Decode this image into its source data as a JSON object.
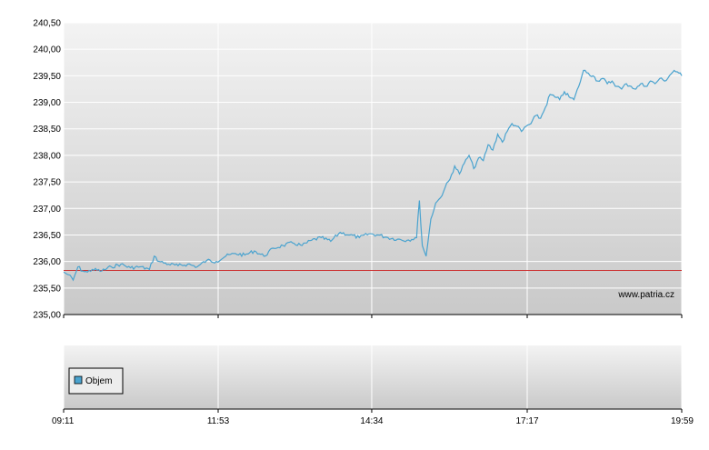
{
  "colors": {
    "line": "#4aa3cf",
    "baseline": "#cc3333",
    "grid": "#ffffff",
    "panel_top": "#f3f3f3",
    "panel_bottom": "#c9c9c9",
    "axis": "#000000"
  },
  "watermark": "www.patria.cz",
  "chart_data": [
    {
      "type": "line",
      "title": "",
      "xlabel": "",
      "ylabel": "",
      "grid": true,
      "xlim": [
        "09:11",
        "19:59"
      ],
      "ylim": [
        235.0,
        240.5
      ],
      "y_ticks": [
        "235,00",
        "235,50",
        "236,00",
        "236,50",
        "237,00",
        "237,50",
        "238,00",
        "238,50",
        "239,00",
        "239,50",
        "240,00",
        "240,50"
      ],
      "x_ticks": [
        "09:11",
        "11:53",
        "14:34",
        "17:17",
        "19:59"
      ],
      "reference_line": 235.83,
      "series": [
        {
          "x": [
            "09:11",
            "09:16",
            "09:21",
            "09:26",
            "09:31",
            "09:36",
            "09:41",
            "09:51",
            "10:01",
            "10:11",
            "10:21",
            "10:31",
            "10:41",
            "10:46",
            "10:51",
            "11:01",
            "11:11",
            "11:21",
            "11:31",
            "11:41",
            "11:51",
            "12:01",
            "12:11",
            "12:21",
            "12:31",
            "12:41",
            "12:51",
            "13:01",
            "13:11",
            "13:21",
            "13:31",
            "13:41",
            "13:51",
            "14:01",
            "14:11",
            "14:21",
            "14:31",
            "14:41",
            "14:51",
            "15:01",
            "15:11",
            "15:21",
            "15:24",
            "15:27",
            "15:31",
            "15:36",
            "15:41",
            "15:46",
            "15:51",
            "15:56",
            "16:01",
            "16:06",
            "16:11",
            "16:16",
            "16:21",
            "16:26",
            "16:31",
            "16:36",
            "16:41",
            "16:46",
            "16:51",
            "16:56",
            "17:01",
            "17:06",
            "17:11",
            "17:16",
            "17:21",
            "17:26",
            "17:31",
            "17:36",
            "17:41",
            "17:46",
            "17:51",
            "17:56",
            "18:01",
            "18:06",
            "18:11",
            "18:16",
            "18:21",
            "18:26",
            "18:31",
            "18:36",
            "18:41",
            "18:46",
            "18:51",
            "18:56",
            "19:01",
            "19:06",
            "19:11",
            "19:16",
            "19:21",
            "19:26",
            "19:31",
            "19:36",
            "19:41",
            "19:46",
            "19:51",
            "19:56",
            "19:59"
          ],
          "y": [
            235.8,
            235.75,
            235.65,
            235.9,
            235.82,
            235.8,
            235.85,
            235.82,
            235.9,
            235.95,
            235.88,
            235.9,
            235.85,
            236.1,
            236.0,
            235.95,
            235.92,
            235.95,
            235.9,
            236.02,
            236.0,
            236.1,
            236.15,
            236.12,
            236.2,
            236.1,
            236.25,
            236.3,
            236.35,
            236.3,
            236.4,
            236.45,
            236.38,
            236.55,
            236.5,
            236.45,
            236.52,
            236.5,
            236.45,
            236.42,
            236.4,
            236.45,
            237.15,
            236.3,
            236.1,
            236.8,
            237.1,
            237.2,
            237.4,
            237.55,
            237.8,
            237.65,
            237.85,
            238.0,
            237.75,
            237.95,
            237.9,
            238.2,
            238.1,
            238.4,
            238.25,
            238.45,
            238.6,
            238.55,
            238.45,
            238.55,
            238.6,
            238.75,
            238.7,
            238.9,
            239.15,
            239.1,
            239.05,
            239.2,
            239.1,
            239.05,
            239.3,
            239.6,
            239.55,
            239.5,
            239.4,
            239.45,
            239.35,
            239.4,
            239.3,
            239.25,
            239.35,
            239.3,
            239.25,
            239.35,
            239.3,
            239.4,
            239.35,
            239.45,
            239.4,
            239.5,
            239.6,
            239.55,
            239.5
          ]
        }
      ]
    },
    {
      "type": "bar",
      "title": "",
      "xlabel": "",
      "ylabel": "",
      "grid": true,
      "legend": "top-left",
      "x_ticks": [
        "09:11",
        "11:53",
        "14:34",
        "17:17",
        "19:59"
      ],
      "series": [
        {
          "name": "Objem",
          "values": []
        }
      ]
    }
  ]
}
